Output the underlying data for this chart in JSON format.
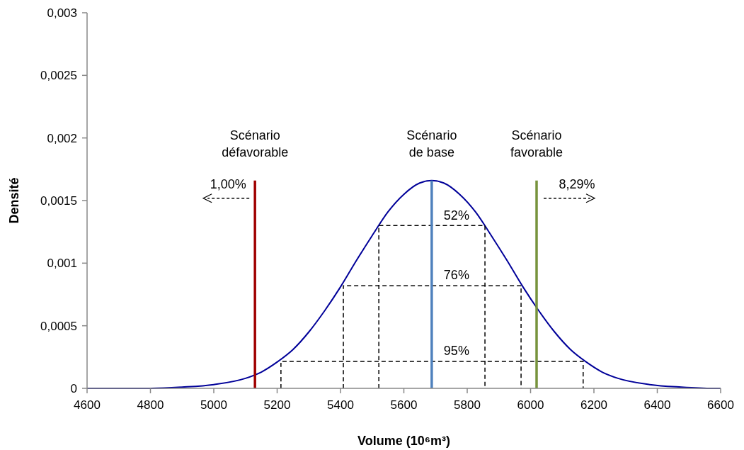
{
  "chart_data": {
    "type": "line",
    "xlabel": "Volume (10⁶m³)",
    "ylabel": "Densité",
    "xlim": [
      4600,
      6600
    ],
    "ylim": [
      0,
      0.003
    ],
    "xticks": [
      4600,
      4800,
      5000,
      5200,
      5400,
      5600,
      5800,
      6000,
      6200,
      6400,
      6600
    ],
    "yticks": [
      0,
      {
        "value": 0.0005,
        "label": "0,0005"
      },
      {
        "value": 0.001,
        "label": "0,001"
      },
      {
        "value": 0.0015,
        "label": "0,0015"
      },
      {
        "value": 0.002,
        "label": "0,002"
      },
      {
        "value": 0.0025,
        "label": "0,0025"
      },
      {
        "value": 0.003,
        "label": "0,003"
      }
    ],
    "grid": false,
    "marker": "none",
    "series": [
      {
        "color": "#000099",
        "line_style": "solid",
        "x": [
          4600,
          4800,
          4900,
          5000,
          5100,
          5150,
          5200,
          5250,
          5300,
          5350,
          5400,
          5450,
          5500,
          5550,
          5600,
          5650,
          5688,
          5726,
          5776,
          5826,
          5876,
          5926,
          5976,
          6026,
          6076,
          6126,
          6176,
          6226,
          6276,
          6376,
          6476,
          6576,
          6600
        ],
        "values": [
          0,
          0,
          1e-05,
          3e-05,
          8e-05,
          0.00013,
          0.00021,
          0.00031,
          0.00045,
          0.00062,
          0.00081,
          0.00102,
          0.00122,
          0.00141,
          0.00155,
          0.00164,
          0.00166,
          0.00164,
          0.00155,
          0.00141,
          0.00122,
          0.00102,
          0.00081,
          0.00062,
          0.00045,
          0.00031,
          0.00021,
          0.00013,
          8e-05,
          3e-05,
          1e-05,
          0,
          0
        ]
      },
      {
        "color": "#000000",
        "line_style": "dashed",
        "x": [
          5521,
          5521,
          5856,
          5856
        ],
        "values": [
          0,
          0.0013,
          0.0013,
          0
        ]
      },
      {
        "color": "#000000",
        "line_style": "dashed",
        "x": [
          5409,
          5409,
          5970,
          5970
        ],
        "values": [
          0,
          0.00082,
          0.00082,
          0
        ]
      },
      {
        "color": "#000000",
        "line_style": "dashed",
        "x": [
          5212,
          5212,
          6166,
          6166
        ],
        "values": [
          0,
          0.000215,
          0.000215,
          0
        ]
      }
    ],
    "ref_lines": [
      {
        "axis": "x",
        "value": 5130,
        "label": "Scénario défavorable",
        "color": "#a00000"
      },
      {
        "axis": "x",
        "value": 5688,
        "label": "Scénario de base",
        "color": "#4f81bd"
      },
      {
        "axis": "x",
        "value": 6019,
        "label": "Scénario favorable",
        "color": "#77933c"
      }
    ],
    "annotations": [
      "1,00%",
      "8,29%",
      "52%",
      "76%",
      "95%"
    ]
  }
}
